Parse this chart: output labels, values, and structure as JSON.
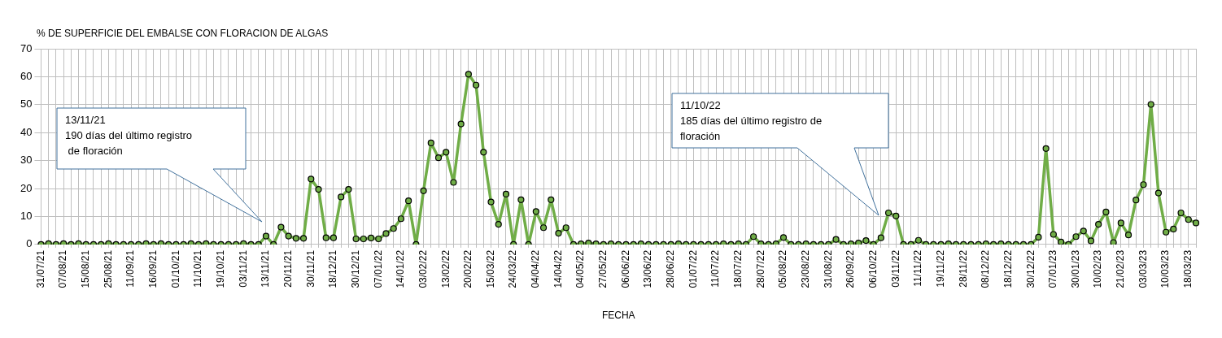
{
  "chart_data": {
    "type": "line",
    "ylabel": "% DE SUPERFICIE DEL EMBALSE CON FLORACION DE ALGAS",
    "xlabel": "FECHA",
    "categories": [
      "31/07/21",
      null,
      null,
      "07/08/21",
      null,
      null,
      "15/08/21",
      null,
      null,
      "25/08/21",
      null,
      null,
      "11/09/21",
      null,
      null,
      "16/09/21",
      null,
      null,
      "01/10/21",
      null,
      null,
      "11/10/21",
      null,
      null,
      "19/10/21",
      null,
      null,
      "03/11/21",
      null,
      null,
      "13/11/21",
      null,
      null,
      "20/11/21",
      null,
      null,
      "30/11/21",
      null,
      null,
      "18/12/21",
      null,
      null,
      "30/12/21",
      null,
      null,
      "07/01/22",
      null,
      null,
      "14/01/22",
      null,
      null,
      "03/02/22",
      null,
      null,
      "13/02/22",
      null,
      null,
      "20/02/22",
      null,
      null,
      "15/03/22",
      null,
      null,
      "24/03/22",
      null,
      null,
      "04/04/22",
      null,
      null,
      "14/04/22",
      null,
      null,
      "04/05/22",
      null,
      null,
      "27/05/22",
      null,
      null,
      "06/06/22",
      null,
      null,
      "13/06/22",
      null,
      null,
      "28/06/22",
      null,
      null,
      "01/07/22",
      null,
      null,
      "11/07/22",
      null,
      null,
      "18/07/22",
      null,
      null,
      "28/07/22",
      null,
      null,
      "05/08/22",
      null,
      null,
      "23/08/22",
      null,
      null,
      "31/08/22",
      null,
      null,
      "26/09/22",
      null,
      null,
      "06/10/22",
      null,
      null,
      "03/11/22",
      null,
      null,
      "11/11/22",
      null,
      null,
      "19/11/22",
      null,
      null,
      "28/11/22",
      null,
      null,
      "08/12/22",
      null,
      null,
      "18/12/22",
      null,
      null,
      "30/12/22",
      null,
      null,
      "07/01/23",
      null,
      null,
      "30/01/23",
      null,
      null,
      "10/02/23",
      null,
      null,
      "21/02/23",
      null,
      null,
      "03/03/23",
      null,
      null,
      "10/03/23",
      null,
      null,
      "18/03/23",
      null
    ],
    "series": [
      {
        "color": "#70ad47",
        "values": [
          0,
          0.3,
          0,
          0.3,
          0,
          0.3,
          0,
          0,
          0,
          0.3,
          0,
          0,
          0,
          0,
          0.3,
          0,
          0.3,
          0,
          0,
          0,
          0.3,
          0,
          0.3,
          0,
          0,
          0,
          0,
          0.3,
          0,
          0,
          3,
          0,
          6.2,
          3,
          2.2,
          2.2,
          23.4,
          19.7,
          2.4,
          2.4,
          17,
          19.7,
          2,
          2,
          2.3,
          2,
          3.9,
          5.7,
          9.2,
          15.6,
          0,
          19.2,
          36.3,
          31,
          33,
          22.2,
          43.1,
          60.9,
          57,
          33,
          15.2,
          7.2,
          18,
          0,
          16,
          0,
          11.8,
          6,
          16,
          4,
          6,
          0,
          0.2,
          0.5,
          0.2,
          0,
          0.2,
          0,
          0,
          0,
          0.2,
          0,
          0,
          0,
          0,
          0.2,
          0,
          0,
          0,
          0,
          0,
          0.2,
          0,
          0.2,
          0,
          2.8,
          0.2,
          0,
          0.2,
          2.5,
          0,
          0,
          0.2,
          0,
          0,
          0,
          1.8,
          0,
          0.2,
          0.5,
          1.4,
          0,
          2.4,
          11.3,
          10.2,
          0,
          0,
          1.5,
          0,
          0,
          0,
          0.2,
          0,
          0,
          0,
          0,
          0.2,
          0,
          0.2,
          0,
          0,
          0,
          0,
          2.6,
          34.3,
          3.6,
          0.9,
          0,
          2.8,
          4.8,
          1.3,
          7.2,
          11.6,
          0.7,
          7.7,
          3.4,
          15.9,
          21.4,
          50.1,
          18.4,
          4.4,
          5.5,
          11.3,
          8.9,
          7.7
        ]
      }
    ],
    "ylim": [
      0,
      70
    ],
    "yticks": [
      0,
      10,
      20,
      30,
      40,
      50,
      60,
      70
    ],
    "grid": true,
    "legend": false,
    "marker": "circle",
    "line_style": "solid",
    "annotations": [
      "13/11/21\n190 días del último registro\n de floración",
      "11/10/22\n185 días del último registro de\nfloración"
    ]
  }
}
